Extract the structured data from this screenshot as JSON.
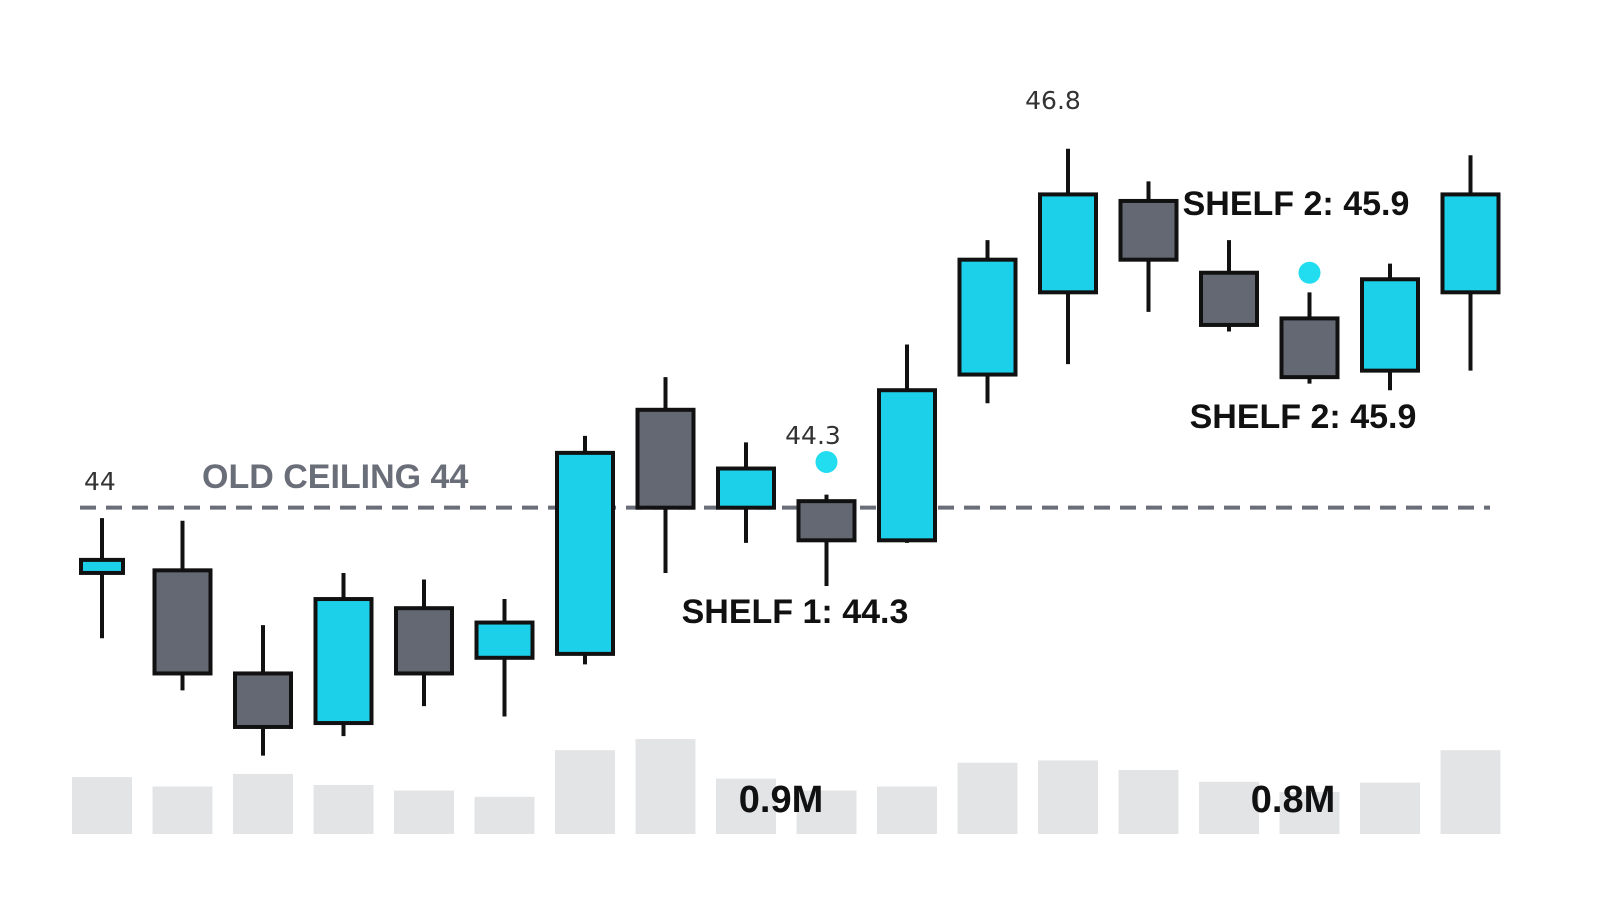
{
  "colors": {
    "up": "#1dd0ea",
    "down": "#636872",
    "outline": "#111111",
    "volume": "#e3e4e6",
    "ceiling_line": "#6a6e78",
    "marker": "#22dcf0"
  },
  "chart_data": {
    "type": "candlestick",
    "title": "",
    "xlabel": "",
    "ylabel": "",
    "ylim": [
      41.5,
      47.2
    ],
    "candles": [
      {
        "open": 43.5,
        "high": 43.92,
        "low": 43.0,
        "close": 43.6,
        "direction": "up"
      },
      {
        "open": 43.52,
        "high": 43.9,
        "low": 42.6,
        "close": 42.73,
        "direction": "down"
      },
      {
        "open": 42.73,
        "high": 43.1,
        "low": 42.1,
        "close": 42.32,
        "direction": "down"
      },
      {
        "open": 42.35,
        "high": 43.5,
        "low": 42.25,
        "close": 43.3,
        "direction": "up"
      },
      {
        "open": 43.23,
        "high": 43.45,
        "low": 42.48,
        "close": 42.73,
        "direction": "down"
      },
      {
        "open": 42.85,
        "high": 43.3,
        "low": 42.4,
        "close": 43.12,
        "direction": "up"
      },
      {
        "open": 42.88,
        "high": 44.55,
        "low": 42.8,
        "close": 44.42,
        "direction": "up"
      },
      {
        "open": 44.75,
        "high": 45.0,
        "low": 43.5,
        "close": 44.0,
        "direction": "down"
      },
      {
        "open": 44.0,
        "high": 44.5,
        "low": 43.73,
        "close": 44.3,
        "direction": "up"
      },
      {
        "open": 44.05,
        "high": 44.1,
        "low": 43.4,
        "close": 43.75,
        "direction": "down"
      },
      {
        "open": 43.75,
        "high": 45.25,
        "low": 43.73,
        "close": 44.9,
        "direction": "up"
      },
      {
        "open": 45.02,
        "high": 46.05,
        "low": 44.8,
        "close": 45.9,
        "direction": "up"
      },
      {
        "open": 45.65,
        "high": 46.75,
        "low": 45.1,
        "close": 46.4,
        "direction": "up"
      },
      {
        "open": 46.35,
        "high": 46.5,
        "low": 45.5,
        "close": 45.9,
        "direction": "down"
      },
      {
        "open": 45.8,
        "high": 46.05,
        "low": 45.35,
        "close": 45.4,
        "direction": "down"
      },
      {
        "open": 45.45,
        "high": 45.65,
        "low": 44.95,
        "close": 45.0,
        "direction": "down"
      },
      {
        "open": 45.05,
        "high": 45.87,
        "low": 44.9,
        "close": 45.75,
        "direction": "up"
      },
      {
        "open": 45.65,
        "high": 46.7,
        "low": 45.05,
        "close": 46.4,
        "direction": "up"
      }
    ],
    "volume": [
      0.72,
      0.6,
      0.76,
      0.62,
      0.55,
      0.47,
      1.06,
      1.2,
      0.7,
      0.55,
      0.6,
      0.9,
      0.93,
      0.81,
      0.66,
      0.53,
      0.65,
      1.06
    ],
    "volume_ylim": [
      0,
      2.2
    ],
    "ceiling": {
      "value": 44.0,
      "label": "OLD CEILING 44",
      "start_label": "44"
    },
    "markers": [
      {
        "candle": 9,
        "value": 44.35
      },
      {
        "candle": 15,
        "value": 45.8
      }
    ],
    "annotations": {
      "peak": "46.8",
      "shelf1_value": "44.3",
      "shelf1": "SHELF 1: 44.3",
      "shelf2_top": "SHELF 2: 45.9",
      "shelf2_bottom": "SHELF 2: 45.9",
      "vol_label_1": "0.9M",
      "vol_label_2": "0.8M"
    }
  }
}
